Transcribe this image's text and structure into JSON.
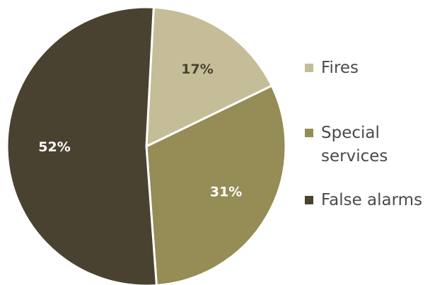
{
  "chart_data": {
    "type": "pie",
    "title": "",
    "legend_position": "right",
    "slices": [
      {
        "label": "Fires",
        "label_lines": [
          "Fires"
        ],
        "value": 17,
        "display": "17%",
        "color": "#c5bd97",
        "text_color": "#4a4230"
      },
      {
        "label": "Special services",
        "label_lines": [
          "Special",
          "services"
        ],
        "value": 31,
        "display": "31%",
        "color": "#958c56",
        "text_color": "#ffffff"
      },
      {
        "label": "False alarms",
        "label_lines": [
          "False alarms"
        ],
        "value": 52,
        "display": "52%",
        "color": "#4a4230",
        "text_color": "#ffffff"
      }
    ]
  }
}
